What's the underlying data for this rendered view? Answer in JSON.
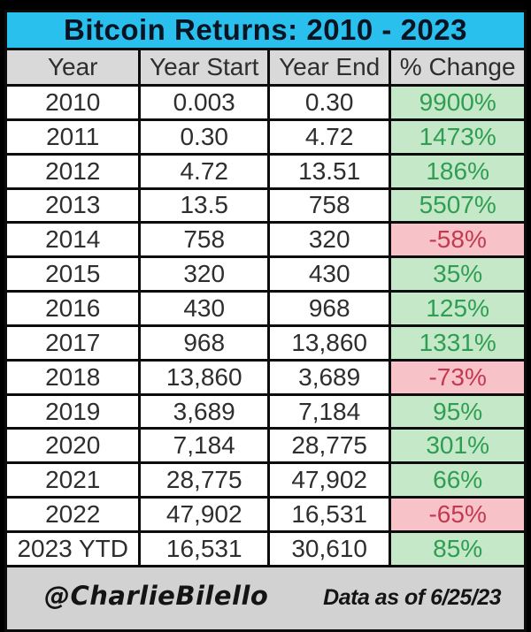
{
  "chart_data": {
    "type": "table",
    "title": "Bitcoin Returns: 2010 - 2023",
    "columns": [
      "Year",
      "Year Start",
      "Year End",
      "% Change"
    ],
    "rows": [
      [
        "2010",
        "0.003",
        "0.30",
        "9900%"
      ],
      [
        "2011",
        "0.30",
        "4.72",
        "1473%"
      ],
      [
        "2012",
        "4.72",
        "13.51",
        "186%"
      ],
      [
        "2013",
        "13.5",
        "758",
        "5507%"
      ],
      [
        "2014",
        "758",
        "320",
        "-58%"
      ],
      [
        "2015",
        "320",
        "430",
        "35%"
      ],
      [
        "2016",
        "430",
        "968",
        "125%"
      ],
      [
        "2017",
        "968",
        "13,860",
        "1331%"
      ],
      [
        "2018",
        "13,860",
        "3,689",
        "-73%"
      ],
      [
        "2019",
        "3,689",
        "7,184",
        "95%"
      ],
      [
        "2020",
        "7,184",
        "28,775",
        "301%"
      ],
      [
        "2021",
        "28,775",
        "47,902",
        "66%"
      ],
      [
        "2022",
        "47,902",
        "16,531",
        "-65%"
      ],
      [
        "2023 YTD",
        "16,531",
        "30,610",
        "85%"
      ]
    ],
    "layout_hints": {
      "positive_change_highlight": "light-green",
      "negative_change_highlight": "light-red",
      "grid": true
    }
  },
  "footer": {
    "credit": "@CharlieBilello",
    "note": "Data as of 6/25/23"
  },
  "colors": {
    "title-bg": "#2ac0ee",
    "title-text": "#0a1322",
    "header-bg": "#d9d9d9",
    "pos-bg": "#c5e8c8",
    "pos-text": "#2f9e52",
    "neg-bg": "#f7c3c9",
    "neg-text": "#c33a50",
    "footer-bg": "#d2d2d2",
    "grid": "#0c0c0c",
    "frame": "#000000"
  }
}
